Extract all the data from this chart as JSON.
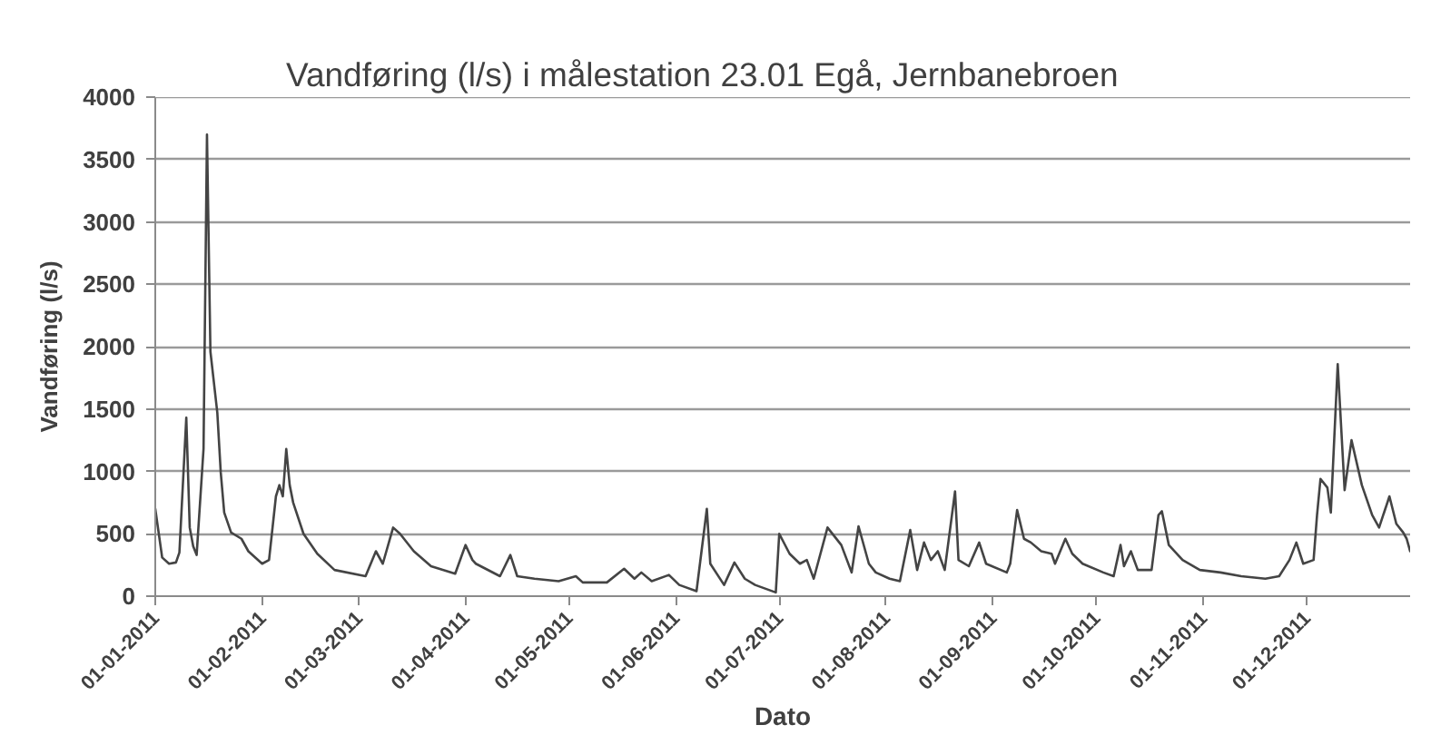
{
  "chart_data": {
    "type": "line",
    "title": "Vandføring (l/s) i målestation 23.01 Egå, Jernbanebroen",
    "xlabel": "Dato",
    "ylabel": "Vandføring (l/s)",
    "x": [
      "2011-01-01",
      "2011-01-03",
      "2011-01-05",
      "2011-01-07",
      "2011-01-08",
      "2011-01-10",
      "2011-01-11",
      "2011-01-12",
      "2011-01-13",
      "2011-01-15",
      "2011-01-16",
      "2011-01-17",
      "2011-01-19",
      "2011-01-20",
      "2011-01-21",
      "2011-01-23",
      "2011-01-26",
      "2011-01-28",
      "2011-02-01",
      "2011-02-03",
      "2011-02-05",
      "2011-02-06",
      "2011-02-07",
      "2011-02-08",
      "2011-02-09",
      "2011-02-10",
      "2011-02-13",
      "2011-02-17",
      "2011-02-22",
      "2011-03-03",
      "2011-03-06",
      "2011-03-08",
      "2011-03-11",
      "2011-03-13",
      "2011-03-17",
      "2011-03-22",
      "2011-03-29",
      "2011-04-01",
      "2011-04-03",
      "2011-04-04",
      "2011-04-11",
      "2011-04-14",
      "2011-04-16",
      "2011-04-21",
      "2011-04-28",
      "2011-05-03",
      "2011-05-05",
      "2011-05-12",
      "2011-05-17",
      "2011-05-20",
      "2011-05-22",
      "2011-05-25",
      "2011-05-30",
      "2011-06-02",
      "2011-06-07",
      "2011-06-10",
      "2011-06-11",
      "2011-06-15",
      "2011-06-18",
      "2011-06-21",
      "2011-06-24",
      "2011-06-30",
      "2011-07-01",
      "2011-07-04",
      "2011-07-07",
      "2011-07-09",
      "2011-07-11",
      "2011-07-15",
      "2011-07-19",
      "2011-07-22",
      "2011-07-24",
      "2011-07-27",
      "2011-07-29",
      "2011-08-02",
      "2011-08-05",
      "2011-08-08",
      "2011-08-10",
      "2011-08-12",
      "2011-08-14",
      "2011-08-16",
      "2011-08-18",
      "2011-08-21",
      "2011-08-22",
      "2011-08-25",
      "2011-08-28",
      "2011-08-30",
      "2011-09-05",
      "2011-09-06",
      "2011-09-08",
      "2011-09-10",
      "2011-09-12",
      "2011-09-15",
      "2011-09-18",
      "2011-09-19",
      "2011-09-22",
      "2011-09-24",
      "2011-09-27",
      "2011-10-03",
      "2011-10-06",
      "2011-10-08",
      "2011-10-09",
      "2011-10-11",
      "2011-10-13",
      "2011-10-17",
      "2011-10-19",
      "2011-10-20",
      "2011-10-22",
      "2011-10-26",
      "2011-10-31",
      "2011-11-06",
      "2011-11-12",
      "2011-11-19",
      "2011-11-23",
      "2011-11-26",
      "2011-11-28",
      "2011-11-30",
      "2011-12-03",
      "2011-12-04",
      "2011-12-05",
      "2011-12-07",
      "2011-12-08",
      "2011-12-10",
      "2011-12-12",
      "2011-12-14",
      "2011-12-17",
      "2011-12-20",
      "2011-12-22",
      "2011-12-25",
      "2011-12-27",
      "2011-12-29",
      "2011-12-30",
      "2011-12-31"
    ],
    "values": [
      700,
      310,
      260,
      270,
      350,
      1430,
      550,
      400,
      330,
      1180,
      3700,
      1960,
      1470,
      990,
      670,
      510,
      460,
      360,
      260,
      290,
      800,
      890,
      800,
      1180,
      890,
      750,
      500,
      340,
      210,
      160,
      360,
      260,
      550,
      500,
      360,
      240,
      180,
      410,
      290,
      260,
      160,
      330,
      160,
      140,
      120,
      160,
      110,
      110,
      220,
      140,
      190,
      120,
      170,
      90,
      40,
      700,
      260,
      90,
      270,
      140,
      90,
      30,
      500,
      340,
      260,
      290,
      140,
      550,
      410,
      190,
      560,
      260,
      190,
      140,
      120,
      530,
      210,
      430,
      290,
      360,
      210,
      840,
      290,
      240,
      430,
      260,
      190,
      260,
      690,
      460,
      430,
      360,
      340,
      260,
      460,
      340,
      260,
      190,
      160,
      410,
      240,
      360,
      210,
      210,
      650,
      680,
      410,
      290,
      210,
      190,
      160,
      140,
      160,
      290,
      430,
      260,
      290,
      650,
      940,
      870,
      670,
      1860,
      850,
      1250,
      890,
      650,
      550,
      800,
      580,
      510,
      460,
      360
    ],
    "color": "#444444",
    "xlim": [
      "2011-01-01",
      "2011-12-31"
    ],
    "xticks": [
      {
        "value": "2011-01-01",
        "label": "01-01-2011"
      },
      {
        "value": "2011-02-01",
        "label": "01-02-2011"
      },
      {
        "value": "2011-03-01",
        "label": "01-03-2011"
      },
      {
        "value": "2011-04-01",
        "label": "01-04-2011"
      },
      {
        "value": "2011-05-01",
        "label": "01-05-2011"
      },
      {
        "value": "2011-06-01",
        "label": "01-06-2011"
      },
      {
        "value": "2011-07-01",
        "label": "01-07-2011"
      },
      {
        "value": "2011-08-01",
        "label": "01-08-2011"
      },
      {
        "value": "2011-09-01",
        "label": "01-09-2011"
      },
      {
        "value": "2011-10-01",
        "label": "01-10-2011"
      },
      {
        "value": "2011-11-01",
        "label": "01-11-2011"
      },
      {
        "value": "2011-12-01",
        "label": "01-12-2011"
      }
    ],
    "ylim": [
      0,
      4000
    ],
    "yticks": [
      0,
      500,
      1000,
      1500,
      2000,
      2500,
      3000,
      3500,
      4000
    ],
    "grid": "y"
  }
}
